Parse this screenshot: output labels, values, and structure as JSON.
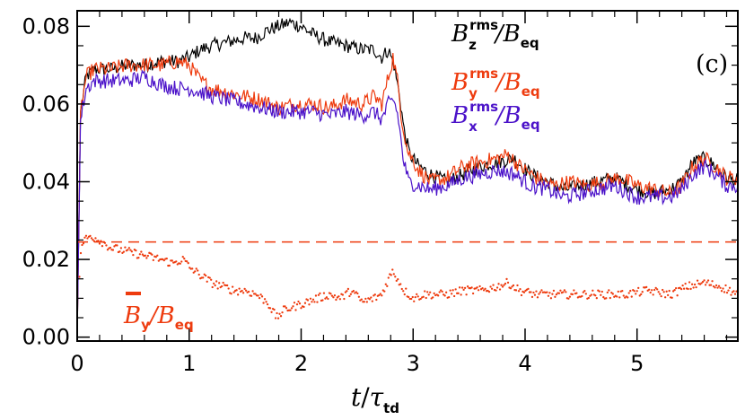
{
  "chart_data": {
    "type": "line",
    "panel_label": "(c)",
    "xlabel": {
      "main": "t",
      "slash": "/",
      "tau": "τ",
      "sub": "td"
    },
    "ylabel": "",
    "xlim": [
      0,
      5.9
    ],
    "ylim": [
      -0.001,
      0.084
    ],
    "xticks": [
      0,
      1,
      2,
      3,
      4,
      5
    ],
    "xtick_labels": [
      "0",
      "1",
      "2",
      "3",
      "4",
      "5"
    ],
    "yticks": [
      0.0,
      0.02,
      0.04,
      0.06,
      0.08
    ],
    "ytick_labels": [
      "0.00",
      "0.02",
      "0.04",
      "0.06",
      "0.08"
    ],
    "grid": false,
    "legend_position": "top-right",
    "series": [
      {
        "name": "B_z^rms/B_eq",
        "label": {
          "main": "B",
          "sup": "rms",
          "sub": "z",
          "slash": "/",
          "den": "B",
          "den_sub": "eq"
        },
        "color": "#000000",
        "style": "solid",
        "points": [
          [
            0,
            0.0
          ],
          [
            0.03,
            0.058
          ],
          [
            0.08,
            0.067
          ],
          [
            0.15,
            0.069
          ],
          [
            0.3,
            0.069
          ],
          [
            0.45,
            0.07
          ],
          [
            0.6,
            0.07
          ],
          [
            0.75,
            0.071
          ],
          [
            0.9,
            0.071
          ],
          [
            1.0,
            0.072
          ],
          [
            1.1,
            0.074
          ],
          [
            1.2,
            0.075
          ],
          [
            1.35,
            0.076
          ],
          [
            1.5,
            0.077
          ],
          [
            1.6,
            0.077
          ],
          [
            1.7,
            0.079
          ],
          [
            1.8,
            0.08
          ],
          [
            1.9,
            0.081
          ],
          [
            2.0,
            0.08
          ],
          [
            2.1,
            0.078
          ],
          [
            2.25,
            0.076
          ],
          [
            2.4,
            0.075
          ],
          [
            2.55,
            0.074
          ],
          [
            2.65,
            0.074
          ],
          [
            2.72,
            0.072
          ],
          [
            2.78,
            0.074
          ],
          [
            2.83,
            0.07
          ],
          [
            2.88,
            0.062
          ],
          [
            2.92,
            0.053
          ],
          [
            2.97,
            0.047
          ],
          [
            3.05,
            0.044
          ],
          [
            3.15,
            0.042
          ],
          [
            3.3,
            0.04
          ],
          [
            3.45,
            0.042
          ],
          [
            3.6,
            0.044
          ],
          [
            3.75,
            0.045
          ],
          [
            3.9,
            0.046
          ],
          [
            4.05,
            0.042
          ],
          [
            4.2,
            0.04
          ],
          [
            4.35,
            0.038
          ],
          [
            4.5,
            0.039
          ],
          [
            4.65,
            0.04
          ],
          [
            4.8,
            0.041
          ],
          [
            5.0,
            0.038
          ],
          [
            5.15,
            0.037
          ],
          [
            5.3,
            0.038
          ],
          [
            5.4,
            0.04
          ],
          [
            5.5,
            0.045
          ],
          [
            5.6,
            0.046
          ],
          [
            5.7,
            0.044
          ],
          [
            5.8,
            0.041
          ],
          [
            5.9,
            0.04
          ]
        ]
      },
      {
        "name": "B_y^rms/B_eq",
        "label": {
          "main": "B",
          "sup": "rms",
          "sub": "y",
          "slash": "/",
          "den": "B",
          "den_sub": "eq"
        },
        "color": "#ee3b0e",
        "style": "solid",
        "points": [
          [
            0,
            0.0
          ],
          [
            0.03,
            0.058
          ],
          [
            0.08,
            0.067
          ],
          [
            0.15,
            0.069
          ],
          [
            0.3,
            0.069
          ],
          [
            0.45,
            0.07
          ],
          [
            0.6,
            0.07
          ],
          [
            0.75,
            0.07
          ],
          [
            0.9,
            0.071
          ],
          [
            1.0,
            0.07
          ],
          [
            1.1,
            0.066
          ],
          [
            1.2,
            0.064
          ],
          [
            1.35,
            0.063
          ],
          [
            1.5,
            0.062
          ],
          [
            1.65,
            0.061
          ],
          [
            1.8,
            0.059
          ],
          [
            1.95,
            0.06
          ],
          [
            2.1,
            0.06
          ],
          [
            2.25,
            0.059
          ],
          [
            2.4,
            0.061
          ],
          [
            2.55,
            0.06
          ],
          [
            2.65,
            0.062
          ],
          [
            2.72,
            0.06
          ],
          [
            2.78,
            0.067
          ],
          [
            2.82,
            0.072
          ],
          [
            2.86,
            0.066
          ],
          [
            2.9,
            0.056
          ],
          [
            2.95,
            0.048
          ],
          [
            3.05,
            0.043
          ],
          [
            3.15,
            0.04
          ],
          [
            3.3,
            0.041
          ],
          [
            3.45,
            0.044
          ],
          [
            3.6,
            0.045
          ],
          [
            3.75,
            0.046
          ],
          [
            3.85,
            0.047
          ],
          [
            3.95,
            0.044
          ],
          [
            4.1,
            0.041
          ],
          [
            4.25,
            0.039
          ],
          [
            4.4,
            0.04
          ],
          [
            4.55,
            0.039
          ],
          [
            4.7,
            0.04
          ],
          [
            4.85,
            0.041
          ],
          [
            5.0,
            0.039
          ],
          [
            5.15,
            0.038
          ],
          [
            5.3,
            0.037
          ],
          [
            5.4,
            0.039
          ],
          [
            5.5,
            0.044
          ],
          [
            5.6,
            0.046
          ],
          [
            5.7,
            0.044
          ],
          [
            5.8,
            0.041
          ],
          [
            5.9,
            0.041
          ]
        ]
      },
      {
        "name": "B_x^rms/B_eq",
        "label": {
          "main": "B",
          "sup": "rms",
          "sub": "x",
          "slash": "/",
          "den": "B",
          "den_sub": "eq"
        },
        "color": "#4b12c9",
        "style": "solid",
        "points": [
          [
            0,
            0.0
          ],
          [
            0.03,
            0.056
          ],
          [
            0.08,
            0.064
          ],
          [
            0.15,
            0.066
          ],
          [
            0.3,
            0.066
          ],
          [
            0.45,
            0.066
          ],
          [
            0.6,
            0.067
          ],
          [
            0.75,
            0.065
          ],
          [
            0.9,
            0.064
          ],
          [
            1.0,
            0.064
          ],
          [
            1.1,
            0.063
          ],
          [
            1.2,
            0.062
          ],
          [
            1.35,
            0.061
          ],
          [
            1.5,
            0.06
          ],
          [
            1.65,
            0.059
          ],
          [
            1.8,
            0.058
          ],
          [
            1.95,
            0.058
          ],
          [
            2.1,
            0.058
          ],
          [
            2.25,
            0.057
          ],
          [
            2.4,
            0.058
          ],
          [
            2.55,
            0.057
          ],
          [
            2.65,
            0.058
          ],
          [
            2.72,
            0.056
          ],
          [
            2.78,
            0.06
          ],
          [
            2.83,
            0.061
          ],
          [
            2.87,
            0.056
          ],
          [
            2.91,
            0.046
          ],
          [
            2.96,
            0.04
          ],
          [
            3.05,
            0.039
          ],
          [
            3.15,
            0.038
          ],
          [
            3.3,
            0.039
          ],
          [
            3.45,
            0.041
          ],
          [
            3.6,
            0.042
          ],
          [
            3.75,
            0.043
          ],
          [
            3.9,
            0.042
          ],
          [
            4.05,
            0.039
          ],
          [
            4.2,
            0.038
          ],
          [
            4.35,
            0.036
          ],
          [
            4.5,
            0.037
          ],
          [
            4.65,
            0.038
          ],
          [
            4.8,
            0.039
          ],
          [
            5.0,
            0.036
          ],
          [
            5.15,
            0.036
          ],
          [
            5.3,
            0.036
          ],
          [
            5.4,
            0.038
          ],
          [
            5.5,
            0.042
          ],
          [
            5.6,
            0.044
          ],
          [
            5.7,
            0.042
          ],
          [
            5.8,
            0.039
          ],
          [
            5.9,
            0.039
          ]
        ]
      },
      {
        "name": "B̄_y/B_eq",
        "label": {
          "main": "B",
          "sub": "y",
          "slash": "/",
          "den": "B",
          "den_sub": "eq"
        },
        "color": "#ee3b0e",
        "style": "dotted",
        "points": [
          [
            0,
            0.0
          ],
          [
            0.03,
            0.022
          ],
          [
            0.06,
            0.025
          ],
          [
            0.12,
            0.026
          ],
          [
            0.2,
            0.025
          ],
          [
            0.3,
            0.023
          ],
          [
            0.45,
            0.022
          ],
          [
            0.6,
            0.021
          ],
          [
            0.75,
            0.02
          ],
          [
            0.85,
            0.019
          ],
          [
            0.95,
            0.02
          ],
          [
            1.0,
            0.018
          ],
          [
            1.1,
            0.016
          ],
          [
            1.2,
            0.014
          ],
          [
            1.3,
            0.013
          ],
          [
            1.4,
            0.012
          ],
          [
            1.5,
            0.012
          ],
          [
            1.6,
            0.011
          ],
          [
            1.7,
            0.009
          ],
          [
            1.78,
            0.005
          ],
          [
            1.85,
            0.007
          ],
          [
            1.95,
            0.008
          ],
          [
            2.05,
            0.009
          ],
          [
            2.15,
            0.01
          ],
          [
            2.25,
            0.011
          ],
          [
            2.35,
            0.01
          ],
          [
            2.45,
            0.012
          ],
          [
            2.55,
            0.009
          ],
          [
            2.65,
            0.01
          ],
          [
            2.72,
            0.011
          ],
          [
            2.78,
            0.015
          ],
          [
            2.82,
            0.017
          ],
          [
            2.86,
            0.015
          ],
          [
            2.92,
            0.012
          ],
          [
            3.0,
            0.01
          ],
          [
            3.1,
            0.011
          ],
          [
            3.2,
            0.011
          ],
          [
            3.3,
            0.011
          ],
          [
            3.45,
            0.012
          ],
          [
            3.6,
            0.012
          ],
          [
            3.75,
            0.013
          ],
          [
            3.85,
            0.014
          ],
          [
            3.95,
            0.012
          ],
          [
            4.1,
            0.011
          ],
          [
            4.3,
            0.011
          ],
          [
            4.5,
            0.011
          ],
          [
            4.7,
            0.011
          ],
          [
            4.9,
            0.011
          ],
          [
            5.1,
            0.012
          ],
          [
            5.3,
            0.011
          ],
          [
            5.45,
            0.013
          ],
          [
            5.6,
            0.014
          ],
          [
            5.75,
            0.013
          ],
          [
            5.9,
            0.011
          ]
        ]
      },
      {
        "name": "reference",
        "color": "#ee3b0e",
        "style": "dashed",
        "points": [
          [
            0,
            0.0245
          ],
          [
            5.9,
            0.0245
          ]
        ]
      }
    ]
  }
}
